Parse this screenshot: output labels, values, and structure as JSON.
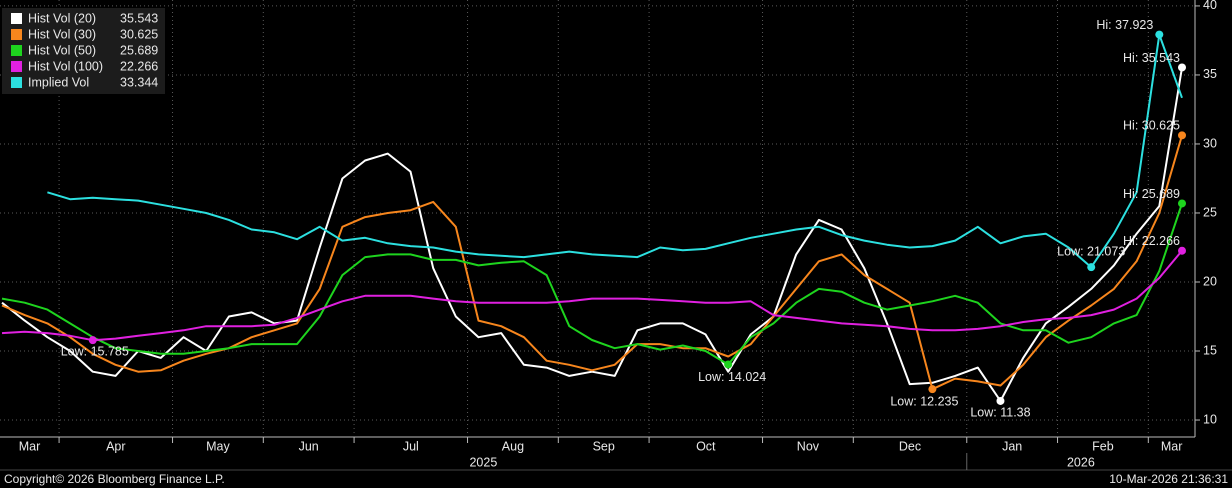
{
  "chart_data": {
    "type": "line",
    "categories": [
      "Mar",
      null,
      null,
      "Apr",
      null,
      null,
      null,
      null,
      "May",
      null,
      null,
      null,
      "Jun",
      null,
      null,
      null,
      "Jul",
      null,
      null,
      null,
      null,
      "Aug",
      null,
      null,
      null,
      "Sep",
      null,
      null,
      null,
      "Oct",
      null,
      null,
      null,
      null,
      "Nov",
      null,
      null,
      null,
      "Dec",
      null,
      null,
      null,
      null,
      "Jan",
      null,
      null,
      null,
      "Feb",
      null,
      null,
      null,
      "Mar",
      null
    ],
    "x_year_labels": [
      "2025",
      "2026"
    ],
    "series": [
      {
        "name": "Hist Vol (20)",
        "color": "#ffffff",
        "hi_label": "Hi: 35.543",
        "low_label": "Low: 11.38",
        "values": [
          18.5,
          17.2,
          16,
          15,
          13.5,
          13.2,
          15,
          14.5,
          16,
          15,
          17.5,
          17.8,
          17,
          17.2,
          22.5,
          27.5,
          28.8,
          29.3,
          28,
          21,
          17.5,
          16,
          16.3,
          14,
          13.8,
          13.2,
          13.5,
          13.2,
          16.5,
          17,
          17,
          16.2,
          13.5,
          16.2,
          17.5,
          22,
          24.5,
          23.8,
          21,
          17,
          12.6,
          12.7,
          13.2,
          13.8,
          11.38,
          14.5,
          17,
          18.2,
          19.5,
          21.2,
          23.5,
          25.5,
          35.543
        ]
      },
      {
        "name": "Hist Vol (30)",
        "color": "#f7861d",
        "hi_label": "Hi: 30.625",
        "low_label": "Low: 12.235",
        "values": [
          18.3,
          17.6,
          17,
          16,
          14.8,
          14,
          13.5,
          13.6,
          14.3,
          14.8,
          15.2,
          16,
          16.5,
          17,
          19.5,
          24,
          24.7,
          25,
          25.2,
          25.8,
          24,
          17.2,
          16.8,
          16,
          14.3,
          14,
          13.6,
          14,
          15.5,
          15.5,
          15.2,
          15.2,
          14.6,
          15.5,
          17.5,
          19.5,
          21.5,
          22,
          20.5,
          19.5,
          18.5,
          12.235,
          13,
          12.8,
          12.5,
          14,
          16,
          17.2,
          18.3,
          19.5,
          21.5,
          25,
          30.625
        ]
      },
      {
        "name": "Hist Vol (50)",
        "color": "#1ed41e",
        "hi_label": "Hi: 25.689",
        "low_label": "Low: 14.024",
        "values": [
          18.8,
          18.5,
          18,
          17,
          16,
          15.2,
          15,
          14.8,
          14.8,
          15,
          15.2,
          15.5,
          15.5,
          15.5,
          17.5,
          20.5,
          21.8,
          22,
          22,
          21.6,
          21.6,
          21.2,
          21.4,
          21.5,
          20.5,
          16.8,
          15.8,
          15.2,
          15.5,
          15.1,
          15.4,
          15,
          14.024,
          16,
          17,
          18.5,
          19.5,
          19.3,
          18.5,
          18,
          18.3,
          18.6,
          19,
          18.5,
          17,
          16.5,
          16.5,
          15.6,
          16,
          17,
          17.6,
          20.8,
          25.689
        ]
      },
      {
        "name": "Hist Vol (100)",
        "color": "#e020e0",
        "hi_label": "Hi: 22.266",
        "low_label": "Low: 15.785",
        "values": [
          16.3,
          16.4,
          16.3,
          16.1,
          15.785,
          15.9,
          16.1,
          16.3,
          16.5,
          16.8,
          16.8,
          16.8,
          16.9,
          17.4,
          18,
          18.6,
          19,
          19,
          19,
          18.8,
          18.6,
          18.5,
          18.5,
          18.5,
          18.5,
          18.6,
          18.8,
          18.8,
          18.8,
          18.7,
          18.6,
          18.5,
          18.5,
          18.6,
          17.6,
          17.4,
          17.2,
          17,
          16.9,
          16.8,
          16.6,
          16.5,
          16.5,
          16.6,
          16.8,
          17.1,
          17.3,
          17.4,
          17.6,
          18,
          18.8,
          20.3,
          22.266
        ]
      },
      {
        "name": "Implied Vol",
        "color": "#2ce0e0",
        "hi_label": "Hi: 37.923",
        "low_label": "Low: 21.073",
        "values": [
          null,
          null,
          26.5,
          26.0,
          26.1,
          26.0,
          25.9,
          25.6,
          25.3,
          25.0,
          24.5,
          23.8,
          23.6,
          23.1,
          24.0,
          23.0,
          23.2,
          22.8,
          22.6,
          22.5,
          22.2,
          22.0,
          21.9,
          21.8,
          22.0,
          22.2,
          22.0,
          21.9,
          21.8,
          22.5,
          22.3,
          22.4,
          22.8,
          23.2,
          23.5,
          23.8,
          24.0,
          23.4,
          23.0,
          22.7,
          22.5,
          22.6,
          23.0,
          24.0,
          22.8,
          23.3,
          23.5,
          22.5,
          21.073,
          23.5,
          26.5,
          37.923,
          33.344
        ]
      }
    ],
    "ylim": [
      8.77,
      40.43
    ],
    "yticks": [
      10,
      15,
      20,
      25,
      30,
      35,
      40
    ],
    "grid": true,
    "legend": "top-left"
  },
  "footer": {
    "copyright": "Copyright© 2026 Bloomberg Finance L.P.",
    "timestamp": "10-Mar-2026 21:36:31"
  }
}
